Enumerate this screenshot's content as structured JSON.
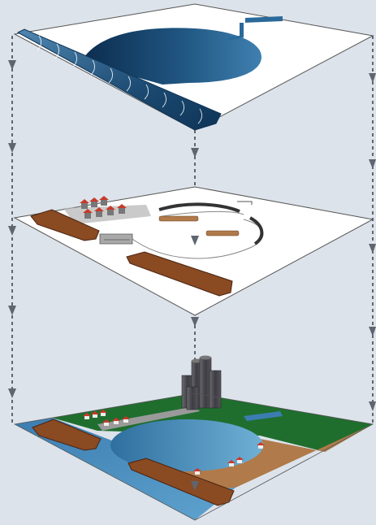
{
  "diagram": {
    "kind": "exploded-layer-view",
    "layers": [
      {
        "id": "water-infrastructure",
        "depicts": [
          "tunnel-intake",
          "reservoir-basin",
          "outflow-channel"
        ]
      },
      {
        "id": "development-plan",
        "depicts": [
          "houses",
          "embankments",
          "walls",
          "pier",
          "crowd-groups"
        ]
      },
      {
        "id": "city-surface",
        "depicts": [
          "lake",
          "grass",
          "sand-area",
          "skyscrapers",
          "road",
          "houses",
          "embankments"
        ]
      }
    ],
    "connectors": {
      "style": "dashed-arrow",
      "direction": "down"
    },
    "colors": {
      "background": "#dde3ea",
      "water_dark": "#0f3358",
      "water_light": "#4f8fbf",
      "embankment": "#8a4a22",
      "grass": "#1f6e2e",
      "sand": "#b07a4a",
      "roof": "#c83a2a",
      "tower": "#4a4a4e",
      "arrow": "#5f6670"
    }
  }
}
